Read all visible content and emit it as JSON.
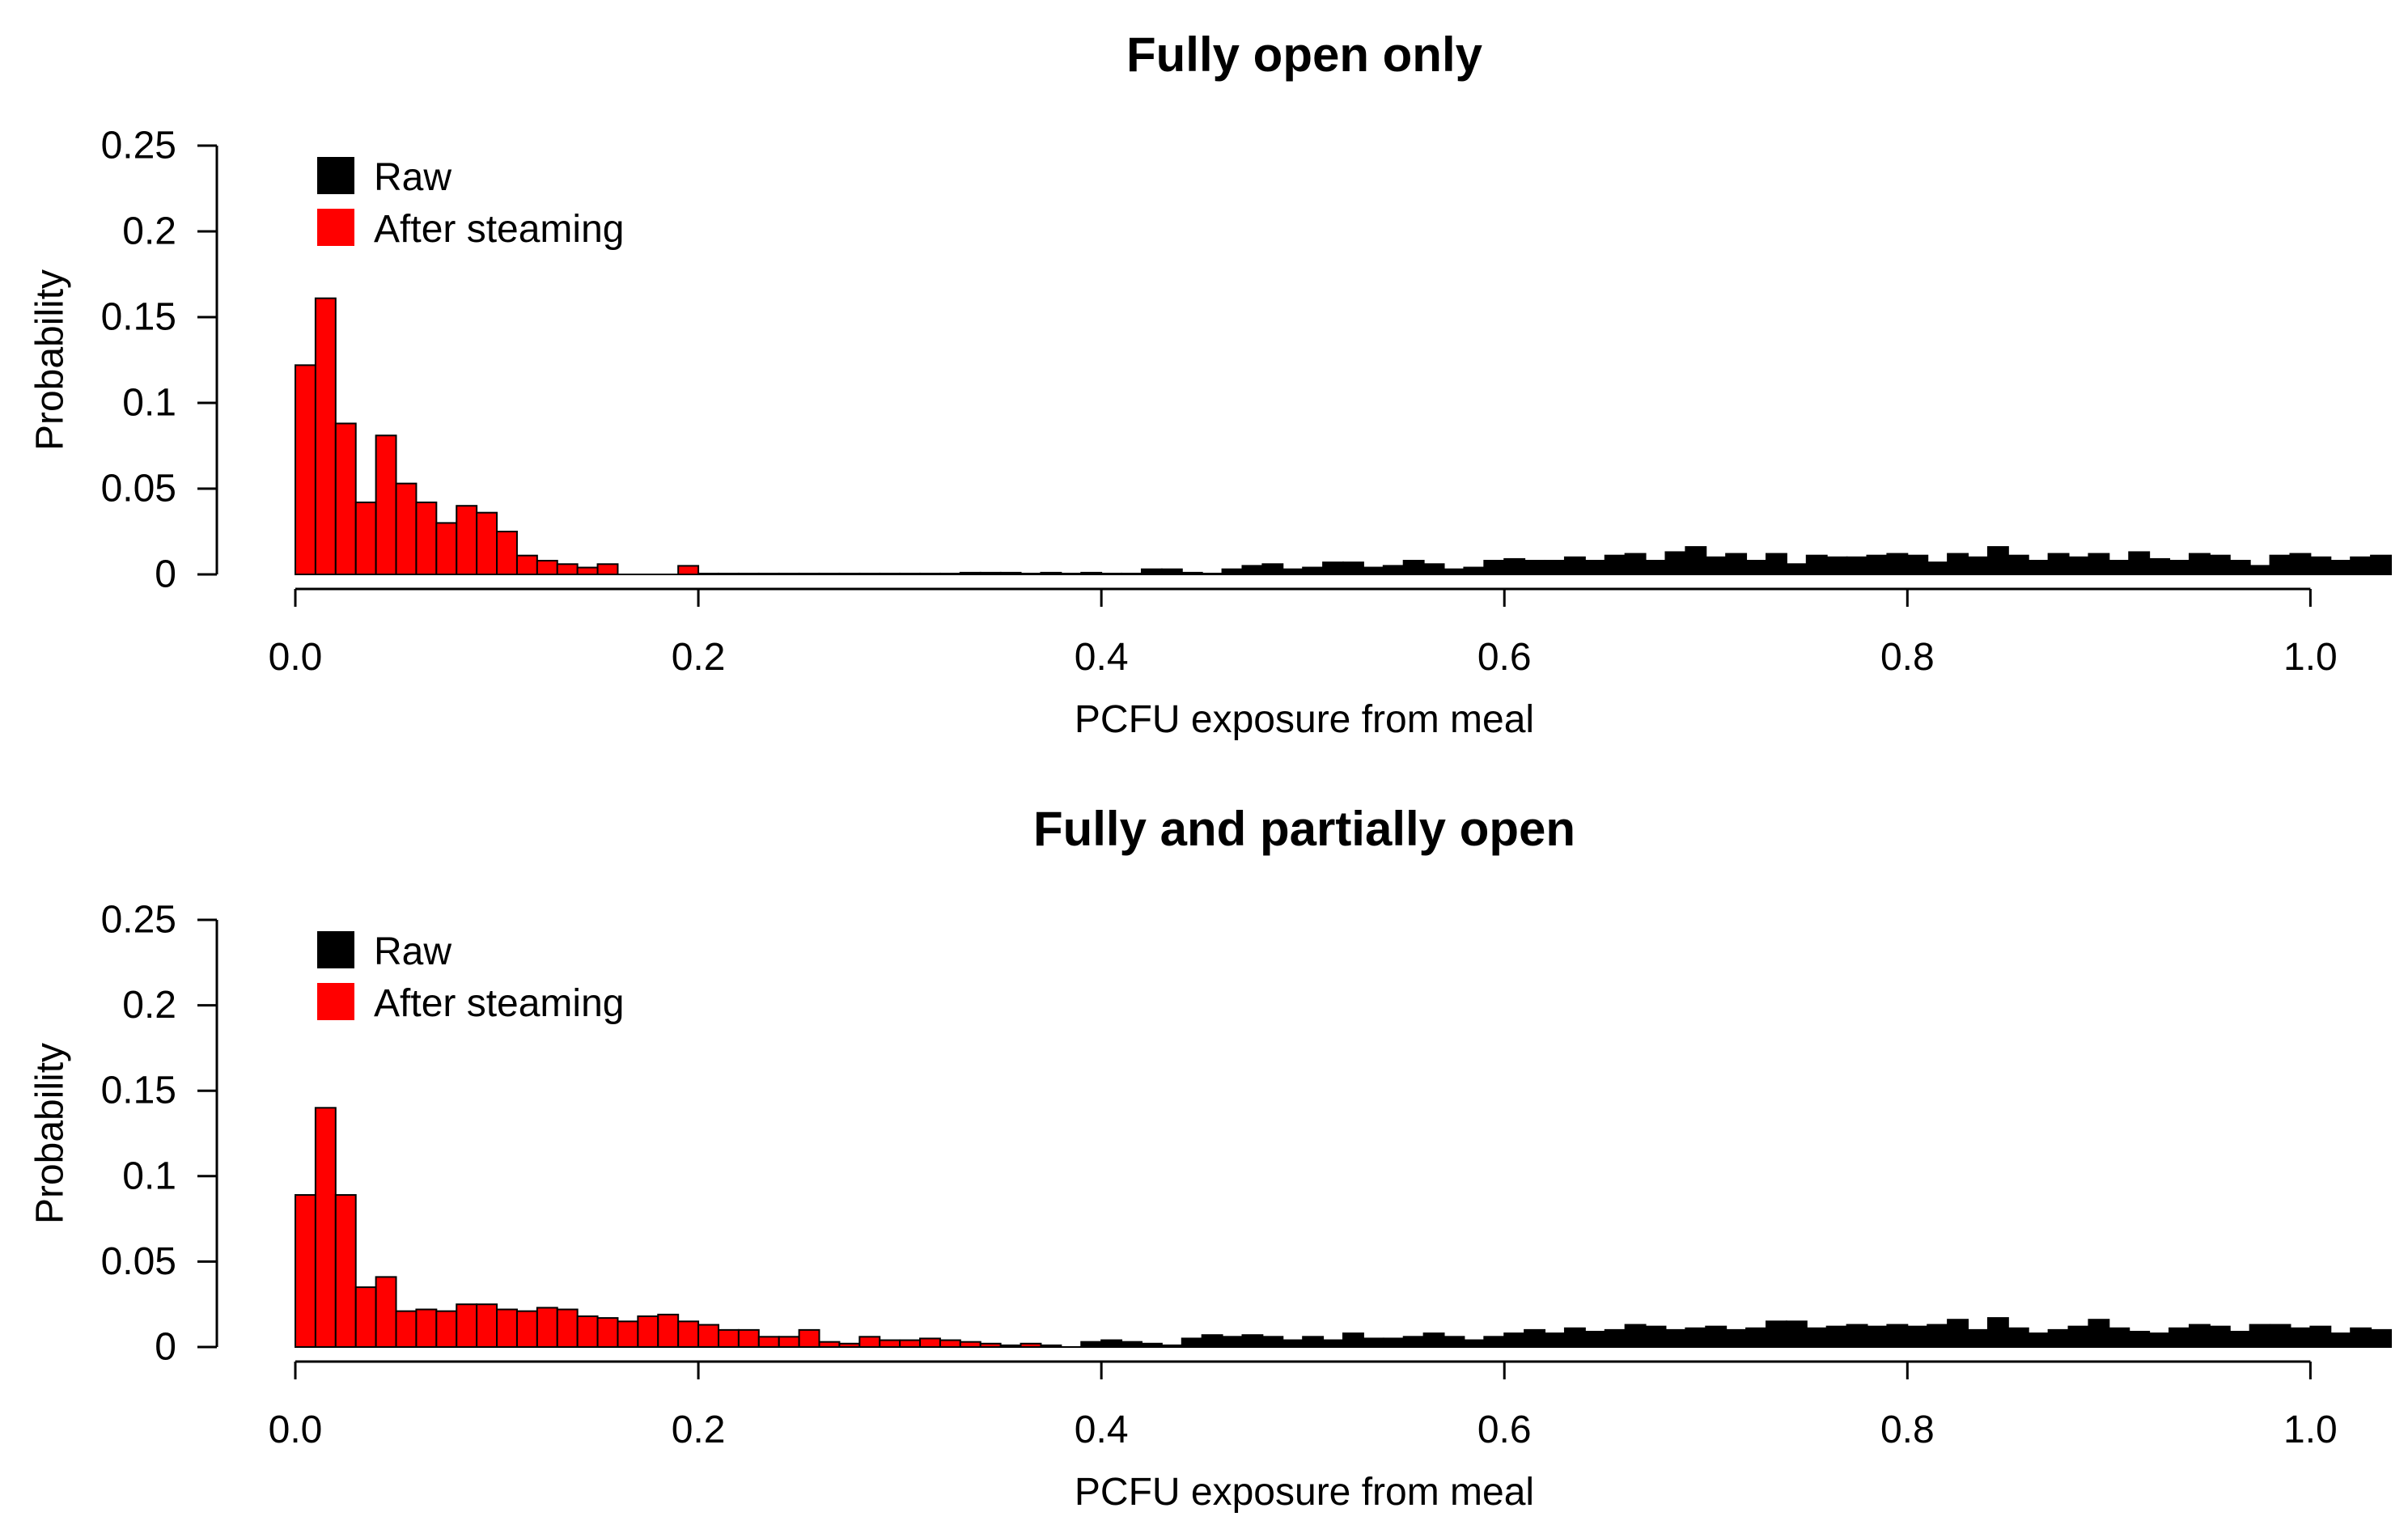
{
  "colors": {
    "raw": "#000000",
    "steamed": "#ff0000",
    "bar_edge": "#000000",
    "background": "#ffffff"
  },
  "chart_data": [
    {
      "type": "bar",
      "title": "Fully open only",
      "xlabel": "PCFU exposure from meal",
      "ylabel": "Probability",
      "xlim": [
        0,
        1.04
      ],
      "ylim": [
        0,
        0.25
      ],
      "bin_width": 0.01,
      "x_ticks": [
        "0.0",
        "0.2",
        "0.4",
        "0.6",
        "0.8",
        "1.0"
      ],
      "y_ticks": [
        "0",
        "0.05",
        "0.1",
        "0.15",
        "0.2",
        "0.25"
      ],
      "legend": {
        "position": "top-left",
        "entries": [
          "Raw",
          "After steaming"
        ]
      },
      "series": [
        {
          "name": "After steaming",
          "color": "#ff0000",
          "bin_start": 0,
          "values": [
            0.122,
            0.161,
            0.088,
            0.042,
            0.081,
            0.053,
            0.042,
            0.03,
            0.04,
            0.036,
            0.025,
            0.011,
            0.008,
            0.006,
            0.004,
            0.006,
            0.0,
            0.0,
            0.0,
            0.005
          ]
        },
        {
          "name": "Raw",
          "color": "#000000",
          "bin_start": 0,
          "values": [
            0,
            0,
            0,
            0,
            0,
            0,
            0,
            0,
            0,
            0,
            0,
            0,
            0,
            0,
            0,
            0,
            0,
            0,
            0,
            0,
            0.0005,
            0.0005,
            0.0005,
            0.0005,
            0.0005,
            0.0005,
            0.0005,
            0.0005,
            0.0005,
            0.0005,
            0.0005,
            0.0005,
            0.0005,
            0.001,
            0.001,
            0.001,
            0.0005,
            0.001,
            0.0005,
            0.001,
            0.0005,
            0.0005,
            0.003,
            0.003,
            0.001,
            0.0005,
            0.003,
            0.005,
            0.006,
            0.003,
            0.004,
            0.007,
            0.007,
            0.004,
            0.005,
            0.008,
            0.006,
            0.003,
            0.004,
            0.008,
            0.009,
            0.008,
            0.008,
            0.01,
            0.008,
            0.011,
            0.012,
            0.008,
            0.013,
            0.016,
            0.01,
            0.012,
            0.008,
            0.012,
            0.006,
            0.011,
            0.01,
            0.01,
            0.011,
            0.012,
            0.011,
            0.007,
            0.012,
            0.01,
            0.016,
            0.011,
            0.008,
            0.012,
            0.01,
            0.012,
            0.008,
            0.013,
            0.009,
            0.008,
            0.012,
            0.011,
            0.008,
            0.005,
            0.011,
            0.012,
            0.01,
            0.008,
            0.01,
            0.011
          ]
        }
      ]
    },
    {
      "type": "bar",
      "title": "Fully and partially open",
      "xlabel": "PCFU exposure from meal",
      "ylabel": "Probability",
      "xlim": [
        0,
        1.04
      ],
      "ylim": [
        0,
        0.25
      ],
      "bin_width": 0.01,
      "x_ticks": [
        "0.0",
        "0.2",
        "0.4",
        "0.6",
        "0.8",
        "1.0"
      ],
      "y_ticks": [
        "0",
        "0.05",
        "0.1",
        "0.15",
        "0.2",
        "0.25"
      ],
      "legend": {
        "position": "top-left",
        "entries": [
          "Raw",
          "After steaming"
        ]
      },
      "series": [
        {
          "name": "After steaming",
          "color": "#ff0000",
          "bin_start": 0,
          "values": [
            0.089,
            0.14,
            0.089,
            0.035,
            0.041,
            0.021,
            0.022,
            0.021,
            0.025,
            0.025,
            0.022,
            0.021,
            0.023,
            0.022,
            0.018,
            0.017,
            0.015,
            0.018,
            0.019,
            0.015,
            0.013,
            0.01,
            0.01,
            0.006,
            0.006,
            0.01,
            0.003,
            0.002,
            0.006,
            0.004,
            0.004,
            0.005,
            0.004,
            0.003,
            0.002,
            0.001,
            0.002,
            0.001
          ]
        },
        {
          "name": "Raw",
          "color": "#000000",
          "bin_start": 0,
          "values": [
            0,
            0,
            0,
            0,
            0,
            0,
            0,
            0,
            0,
            0,
            0,
            0,
            0,
            0,
            0,
            0,
            0,
            0,
            0,
            0,
            0,
            0,
            0,
            0,
            0,
            0,
            0,
            0,
            0,
            0,
            0,
            0,
            0,
            0,
            0,
            0,
            0,
            0,
            0,
            0.003,
            0.004,
            0.003,
            0.002,
            0.001,
            0.005,
            0.007,
            0.006,
            0.007,
            0.006,
            0.004,
            0.006,
            0.004,
            0.008,
            0.005,
            0.005,
            0.006,
            0.008,
            0.006,
            0.004,
            0.006,
            0.008,
            0.01,
            0.008,
            0.011,
            0.009,
            0.01,
            0.013,
            0.012,
            0.01,
            0.011,
            0.012,
            0.01,
            0.011,
            0.015,
            0.015,
            0.011,
            0.012,
            0.013,
            0.012,
            0.013,
            0.012,
            0.013,
            0.016,
            0.01,
            0.017,
            0.011,
            0.008,
            0.01,
            0.012,
            0.016,
            0.011,
            0.009,
            0.008,
            0.011,
            0.013,
            0.012,
            0.009,
            0.013,
            0.013,
            0.011,
            0.012,
            0.008,
            0.011,
            0.01
          ]
        }
      ]
    }
  ]
}
